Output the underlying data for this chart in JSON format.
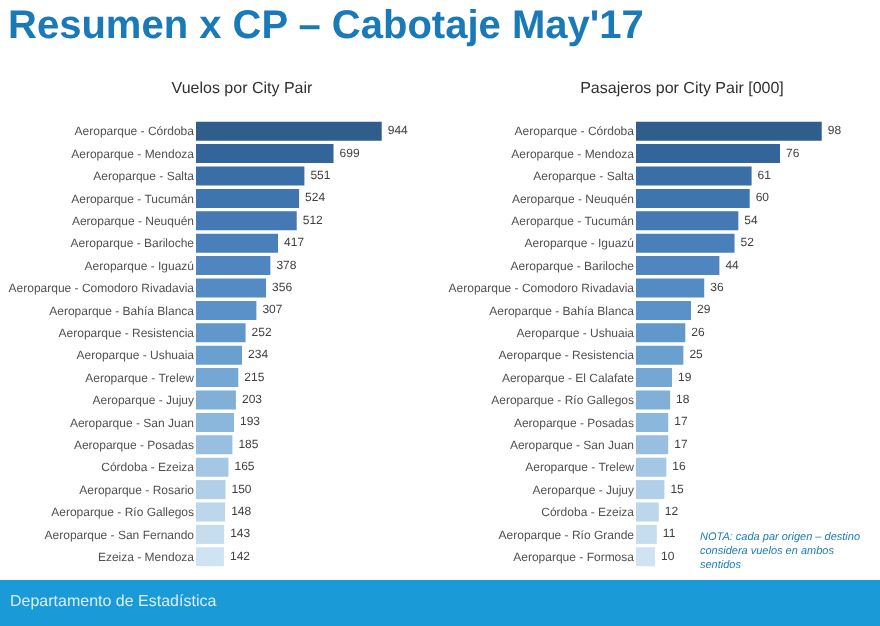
{
  "chart_data": [
    {
      "type": "bar",
      "orientation": "horizontal",
      "data_labels": true,
      "title": "Resumen x CP – Cabotaje May'17",
      "subtitle": "Vuelos por City Pair",
      "categories": [
        "Aeroparque - Córdoba",
        "Aeroparque - Mendoza",
        "Aeroparque - Salta",
        "Aeroparque - Tucumán",
        "Aeroparque - Neuquén",
        "Aeroparque - Bariloche",
        "Aeroparque - Iguazú",
        "Aeroparque - Comodoro Rivadavia",
        "Aeroparque - Bahía Blanca",
        "Aeroparque - Resistencia",
        "Aeroparque - Ushuaia",
        "Aeroparque - Trelew",
        "Aeroparque - Jujuy",
        "Aeroparque - San Juan",
        "Aeroparque - Posadas",
        "Córdoba - Ezeiza",
        "Aeroparque - Rosario",
        "Aeroparque - Río Gallegos",
        "Aeroparque - San Fernando",
        "Ezeiza - Mendoza"
      ],
      "values": [
        944,
        699,
        551,
        524,
        512,
        417,
        378,
        356,
        307,
        252,
        234,
        215,
        203,
        193,
        185,
        165,
        150,
        148,
        143,
        142
      ],
      "colors": [
        "#2f5d8c",
        "#34659a",
        "#3a6ea6",
        "#3f75ae",
        "#4479b3",
        "#4a80ba",
        "#4f86c0",
        "#548bc4",
        "#5a91c8",
        "#6198cc",
        "#69a0d0",
        "#74a7d4",
        "#80afd8",
        "#8cb7dc",
        "#98bfe0",
        "#a4c7e4",
        "#b0cfe8",
        "#bcd6ec",
        "#c6ddef",
        "#d0e3f2"
      ],
      "annotations": [
        "Departamento de Estadística"
      ]
    },
    {
      "type": "bar",
      "orientation": "horizontal",
      "data_labels": true,
      "title": "Pasajeros por City Pair [000]",
      "categories": [
        "Aeroparque - Córdoba",
        "Aeroparque - Mendoza",
        "Aeroparque - Salta",
        "Aeroparque - Neuquén",
        "Aeroparque - Tucumán",
        "Aeroparque - Iguazú",
        "Aeroparque - Bariloche",
        "Aeroparque - Comodoro Rivadavia",
        "Aeroparque - Bahía Blanca",
        "Aeroparque - Ushuaia",
        "Aeroparque - Resistencia",
        "Aeroparque - El Calafate",
        "Aeroparque - Río Gallegos",
        "Aeroparque - Posadas",
        "Aeroparque - San Juan",
        "Aeroparque - Trelew",
        "Aeroparque - Jujuy",
        "Córdoba - Ezeiza",
        "Aeroparque - Río Grande",
        "Aeroparque - Formosa"
      ],
      "values": [
        98,
        76,
        61,
        60,
        54,
        52,
        44,
        36,
        29,
        26,
        25,
        19,
        18,
        17,
        17,
        16,
        15,
        12,
        11,
        10
      ],
      "colors": [
        "#2f5d8c",
        "#34659a",
        "#3a6ea6",
        "#3f75ae",
        "#4479b3",
        "#4a80ba",
        "#4f86c0",
        "#548bc4",
        "#5a91c8",
        "#6198cc",
        "#69a0d0",
        "#74a7d4",
        "#80afd8",
        "#8cb7dc",
        "#98bfe0",
        "#a4c7e4",
        "#b0cfe8",
        "#bcd6ec",
        "#c6ddef",
        "#d0e3f2"
      ],
      "annotations": [
        "NOTA: cada par origen – destino considera vuelos en ambos sentidos"
      ]
    }
  ]
}
